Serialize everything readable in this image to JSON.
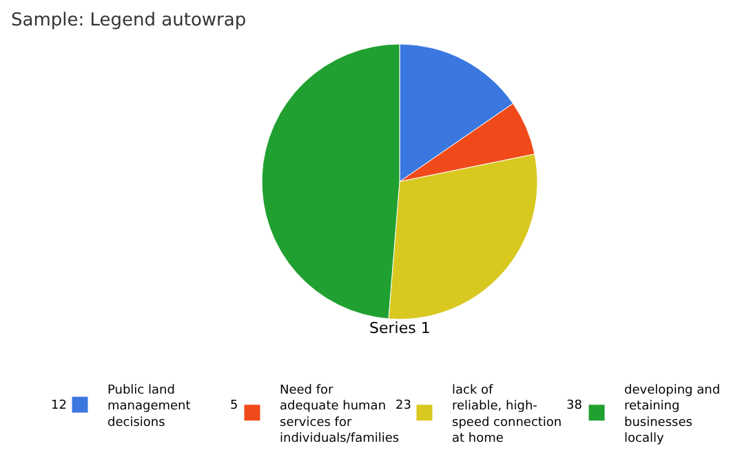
{
  "chart_data": {
    "type": "pie",
    "title": "Sample: Legend autowrap",
    "categories": [
      "Public land management decisions",
      "Need for adequate human services for individuals/families",
      "lack of reliable, high-speed connection at home",
      "developing and retaining businesses locally"
    ],
    "series": [
      {
        "name": "Series 1",
        "values": [
          12,
          5,
          23,
          38
        ]
      }
    ],
    "colors": [
      "#3a78e0",
      "#f04a1a",
      "#d8c820",
      "#20a030"
    ],
    "data_labels": true,
    "legend": "bottom"
  }
}
